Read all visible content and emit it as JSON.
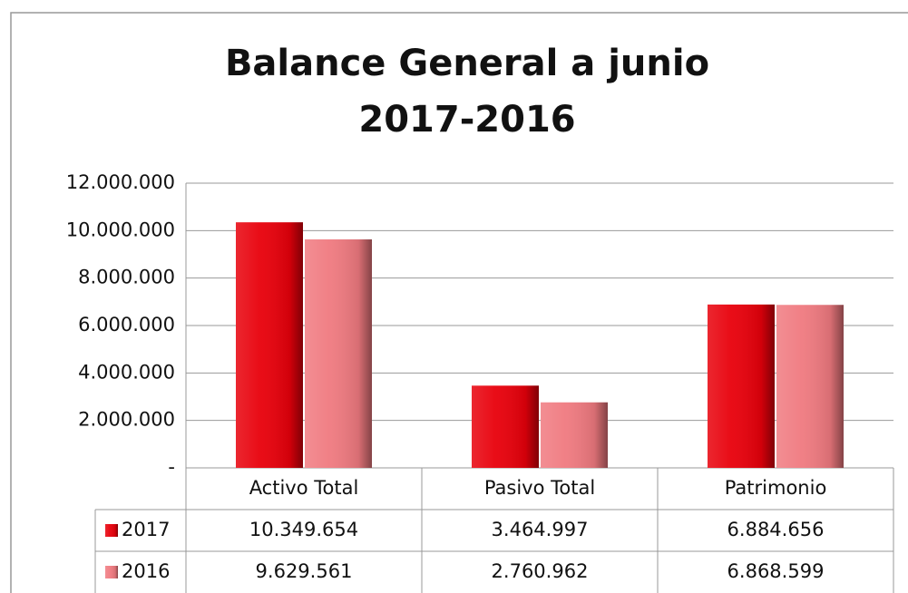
{
  "chart_data": {
    "type": "bar",
    "title": [
      "Balance General a junio",
      "2017-2016"
    ],
    "categories": [
      "Activo Total",
      "Pasivo Total",
      "Patrimonio"
    ],
    "series": [
      {
        "name": "2017",
        "color": "#e8000b",
        "values": [
          10349654,
          3464997,
          6884656
        ],
        "value_labels": [
          "10.349.654",
          "3.464.997",
          "6.884.656"
        ]
      },
      {
        "name": "2016",
        "color": "#f07a80",
        "values": [
          9629561,
          2760962,
          6868599
        ],
        "value_labels": [
          "9.629.561",
          "2.760.962",
          "6.868.599"
        ]
      }
    ],
    "ylim": [
      0,
      12000000
    ],
    "yticks": [
      {
        "value": 0,
        "label": "-"
      },
      {
        "value": 2000000,
        "label": "2.000.000"
      },
      {
        "value": 4000000,
        "label": "4.000.000"
      },
      {
        "value": 6000000,
        "label": "6.000.000"
      },
      {
        "value": 8000000,
        "label": "8.000.000"
      },
      {
        "value": 10000000,
        "label": "10.000.000"
      },
      {
        "value": 12000000,
        "label": "12.000.000"
      }
    ],
    "grid": true
  }
}
